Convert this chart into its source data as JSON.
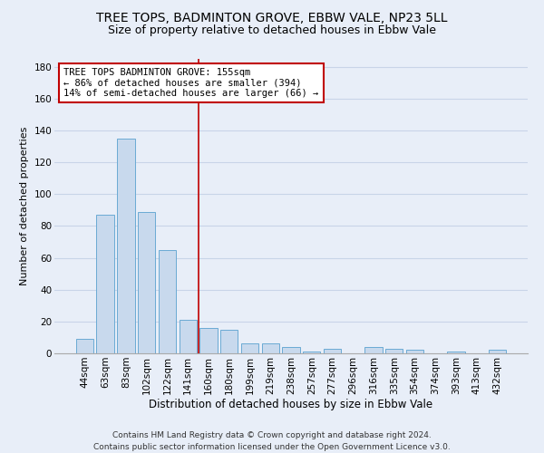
{
  "title": "TREE TOPS, BADMINTON GROVE, EBBW VALE, NP23 5LL",
  "subtitle": "Size of property relative to detached houses in Ebbw Vale",
  "xlabel": "Distribution of detached houses by size in Ebbw Vale",
  "ylabel": "Number of detached properties",
  "bar_color": "#c8d9ed",
  "bar_edge_color": "#6aaad4",
  "categories": [
    "44sqm",
    "63sqm",
    "83sqm",
    "102sqm",
    "122sqm",
    "141sqm",
    "160sqm",
    "180sqm",
    "199sqm",
    "219sqm",
    "238sqm",
    "257sqm",
    "277sqm",
    "296sqm",
    "316sqm",
    "335sqm",
    "354sqm",
    "374sqm",
    "393sqm",
    "413sqm",
    "432sqm"
  ],
  "values": [
    9,
    87,
    135,
    89,
    65,
    21,
    16,
    15,
    6,
    6,
    4,
    1,
    3,
    0,
    4,
    3,
    2,
    0,
    1,
    0,
    2
  ],
  "vline_position": 5.5,
  "vline_color": "#c00000",
  "annotation_text": "TREE TOPS BADMINTON GROVE: 155sqm\n← 86% of detached houses are smaller (394)\n14% of semi-detached houses are larger (66) →",
  "annotation_box_color": "#ffffff",
  "annotation_box_edge": "#c00000",
  "ylim": [
    0,
    185
  ],
  "yticks": [
    0,
    20,
    40,
    60,
    80,
    100,
    120,
    140,
    160,
    180
  ],
  "grid_color": "#c8d4e8",
  "background_color": "#e8eef8",
  "footer": "Contains HM Land Registry data © Crown copyright and database right 2024.\nContains public sector information licensed under the Open Government Licence v3.0.",
  "title_fontsize": 10,
  "subtitle_fontsize": 9,
  "xlabel_fontsize": 8.5,
  "ylabel_fontsize": 8,
  "tick_fontsize": 7.5,
  "annotation_fontsize": 7.5,
  "footer_fontsize": 6.5
}
